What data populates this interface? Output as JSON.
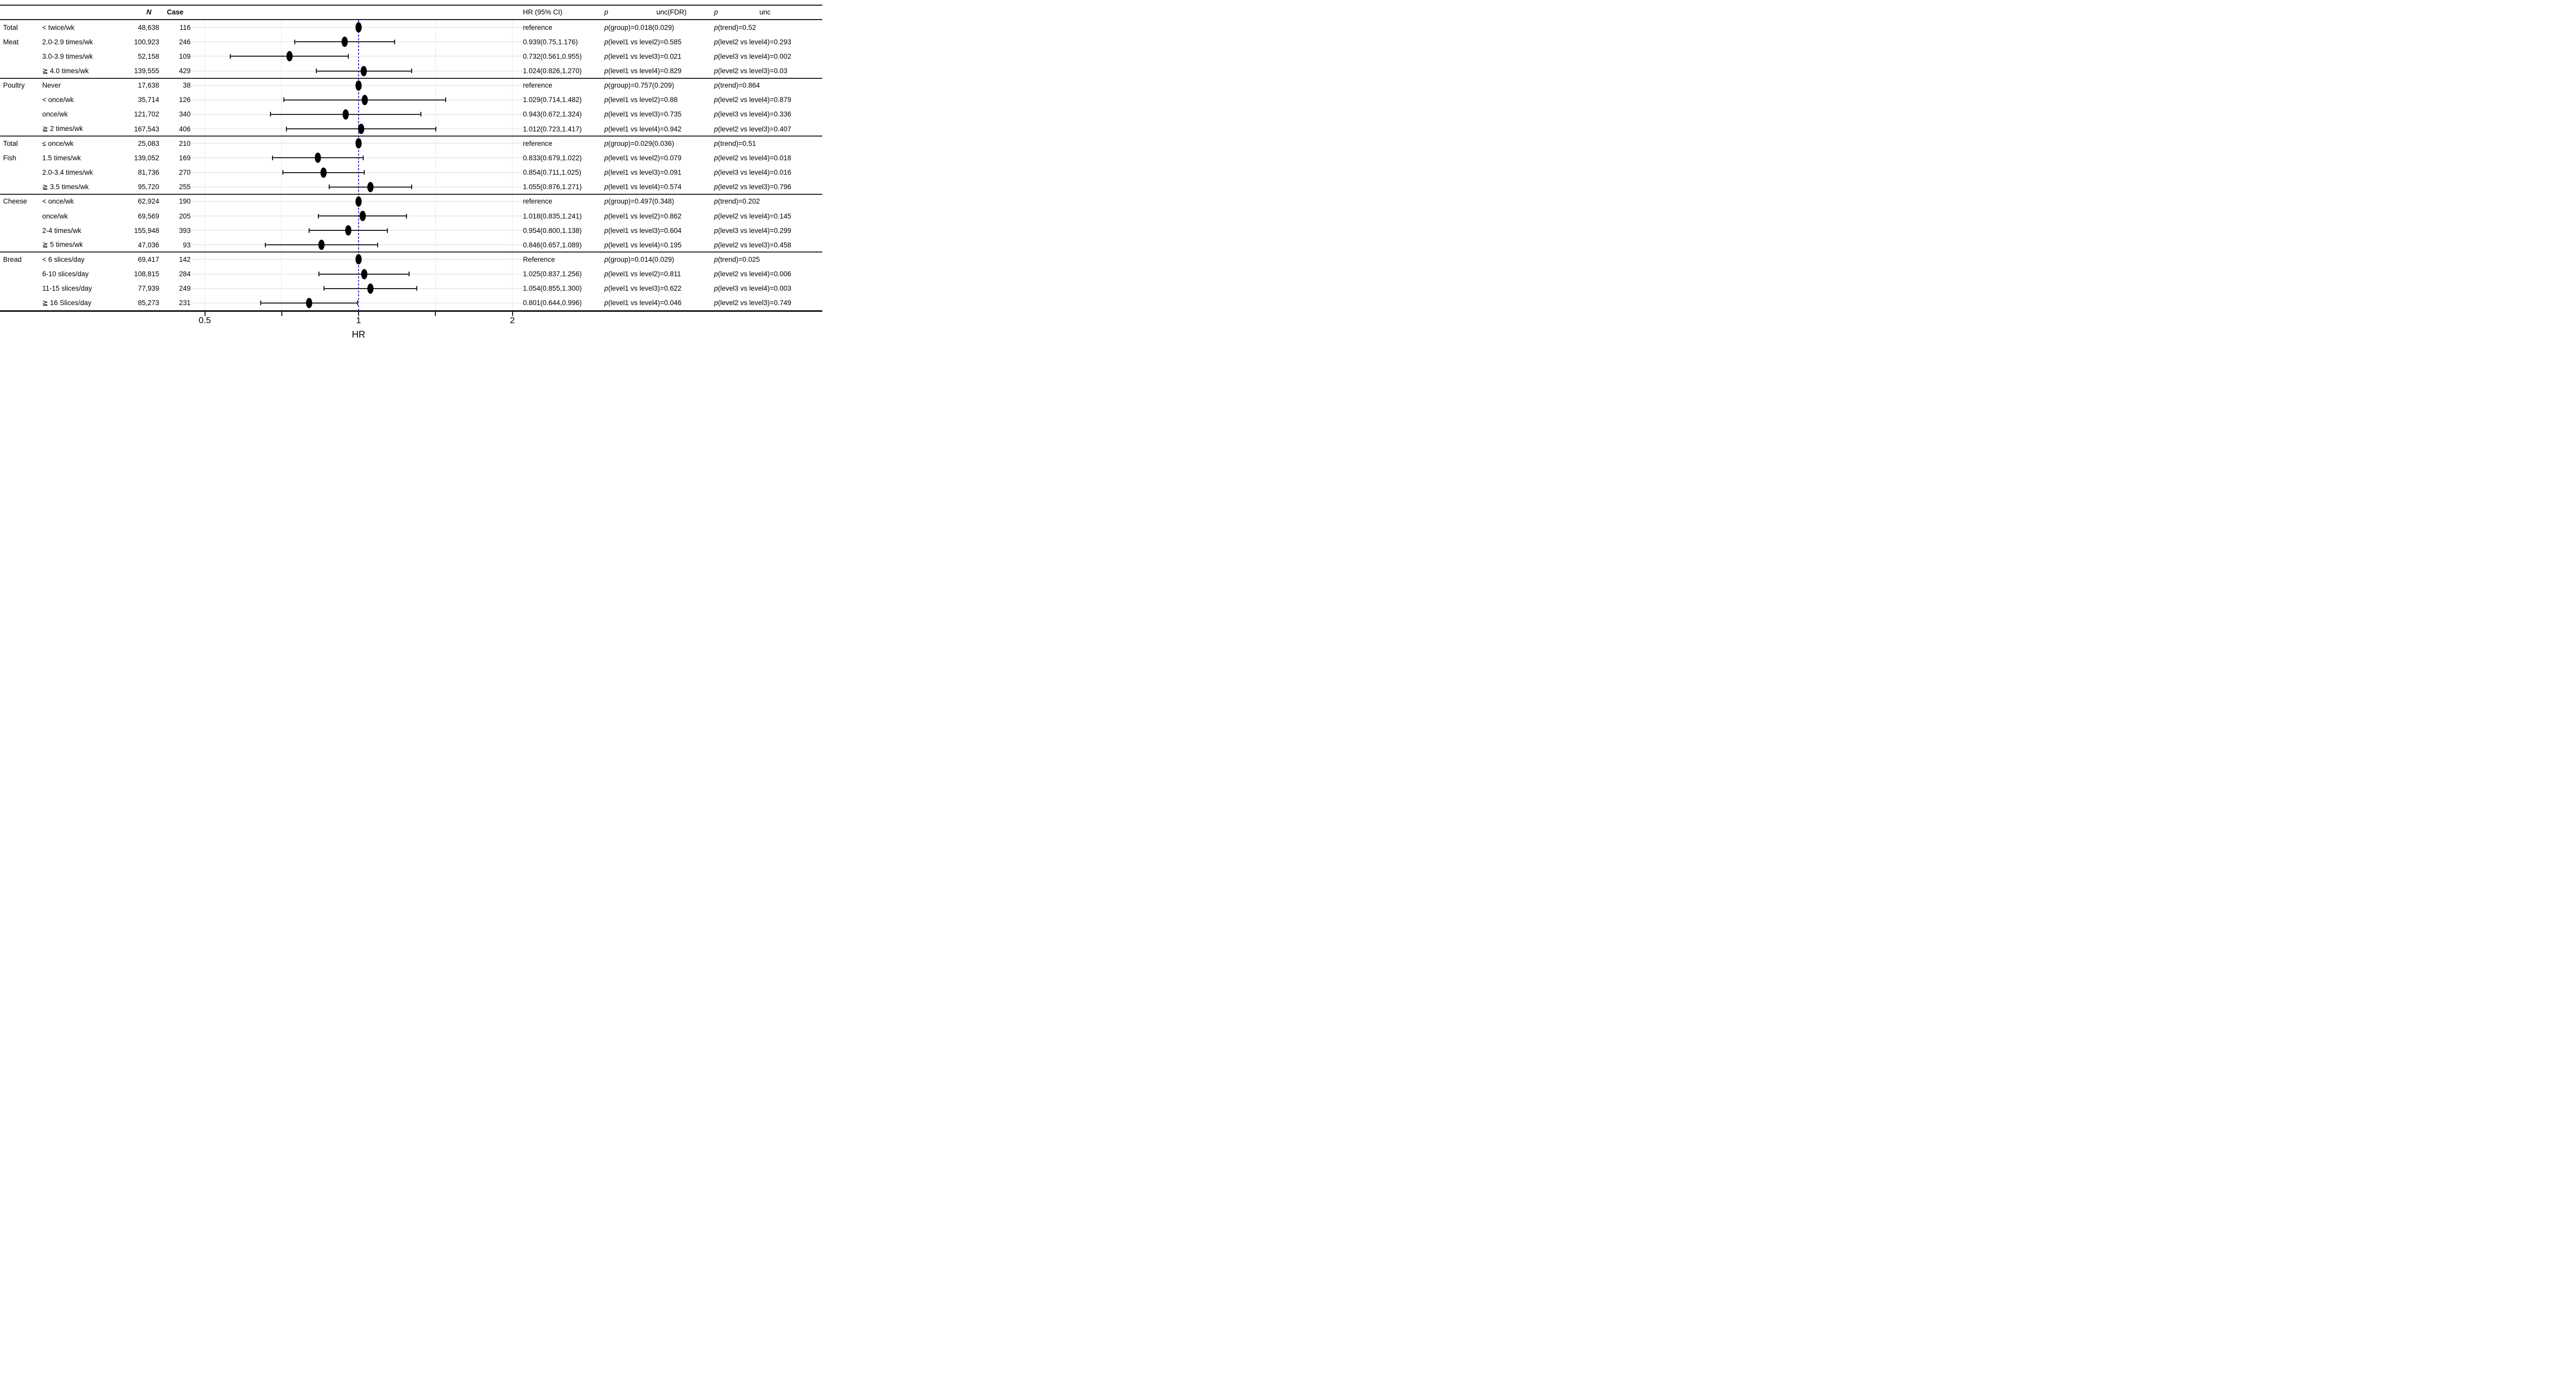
{
  "chart_data": {
    "type": "forest",
    "title": "",
    "xlabel": "HR",
    "x_scale": "log",
    "x_axis_ticks": [
      {
        "value": 0.5,
        "label": "0.5"
      },
      {
        "value": 0.7071,
        "label": ""
      },
      {
        "value": 1,
        "label": "1"
      },
      {
        "value": 1.4142,
        "label": ""
      },
      {
        "value": 2,
        "label": "2"
      }
    ],
    "x_range_displayed": [
      0.47,
      2.1
    ],
    "reference_line": {
      "value": 1,
      "style": "dashed",
      "color": "#3b3bd0"
    },
    "marker_color": "#000000",
    "grid": true,
    "headers": {
      "n": "N",
      "case": "Case",
      "hr_ci": "HR (95% CI)",
      "p1": "p",
      "unc_fdr": "unc(FDR)",
      "p2": "p",
      "unc": "unc"
    },
    "groups": [
      {
        "label_lines": [
          "Total",
          "Meat"
        ],
        "rows": [
          {
            "level": "< twice/wk",
            "n": "48,638",
            "case": "116",
            "reference": true,
            "hr": 1,
            "ci": null,
            "hr_ci": "reference",
            "p_col1": "p(group)=0.018(0.029)",
            "p_col2": "p(trend)=0.52"
          },
          {
            "level": "2.0-2.9 times/wk",
            "n": "100,923",
            "case": "246",
            "reference": false,
            "hr": 0.939,
            "ci": [
              0.75,
              1.176
            ],
            "hr_ci": "0.939(0.75,1.176)",
            "p_col1": "p(level1 vs level2)=0.585",
            "p_col2": "p(level2 vs level4)=0.293"
          },
          {
            "level": "3.0-3.9 times/wk",
            "n": "52,158",
            "case": "109",
            "reference": false,
            "hr": 0.732,
            "ci": [
              0.561,
              0.955
            ],
            "hr_ci": "0.732(0.561,0.955)",
            "p_col1": "p(level1 vs level3)=0.021",
            "p_col2": "p(level3 vs level4)=0.002"
          },
          {
            "level": "≧ 4.0 times/wk",
            "n": "139,555",
            "case": "429",
            "reference": false,
            "hr": 1.024,
            "ci": [
              0.826,
              1.27
            ],
            "hr_ci": "1.024(0.826,1.270)",
            "p_col1": "p(level1 vs level4)=0.829",
            "p_col2": "p(level2 vs level3)=0.03"
          }
        ]
      },
      {
        "label_lines": [
          "Poultry"
        ],
        "rows": [
          {
            "level": "Never",
            "n": "17,638",
            "case": "38",
            "reference": true,
            "hr": 1,
            "ci": null,
            "hr_ci": "reference",
            "p_col1": "p(group)=0.757(0.209)",
            "p_col2": "p(trend)=0.864"
          },
          {
            "level": "< once/wk",
            "n": "35,714",
            "case": "126",
            "reference": false,
            "hr": 1.029,
            "ci": [
              0.714,
              1.482
            ],
            "hr_ci": "1.029(0.714,1.482)",
            "p_col1": "p(level1 vs level2)=0.88",
            "p_col2": "p(level2 vs level4)=0.879"
          },
          {
            "level": "once/wk",
            "n": "121,702",
            "case": "340",
            "reference": false,
            "hr": 0.943,
            "ci": [
              0.672,
              1.324
            ],
            "hr_ci": "0.943(0.672,1.324)",
            "p_col1": "p(level1 vs level3)=0.735",
            "p_col2": "p(level3 vs level4)=0.336"
          },
          {
            "level": "≧ 2 times/wk",
            "n": "167,543",
            "case": "406",
            "reference": false,
            "hr": 1.012,
            "ci": [
              0.723,
              1.417
            ],
            "hr_ci": "1.012(0.723,1.417)",
            "p_col1": "p(level1 vs level4)=0.942",
            "p_col2": "p(level2 vs level3)=0.407"
          }
        ]
      },
      {
        "label_lines": [
          "Total",
          "Fish"
        ],
        "rows": [
          {
            "level": "≤ once/wk",
            "n": "25,083",
            "case": "210",
            "reference": true,
            "hr": 1,
            "ci": null,
            "hr_ci": "reference",
            "p_col1": "p(group)=0.029(0.036)",
            "p_col2": "p(trend)=0.51"
          },
          {
            "level": "1.5 times/wk",
            "n": "139,052",
            "case": "169",
            "reference": false,
            "hr": 0.833,
            "ci": [
              0.679,
              1.022
            ],
            "hr_ci": "0.833(0.679,1.022)",
            "p_col1": "p(level1 vs level2)=0.079",
            "p_col2": "p(level2 vs level4)=0.018"
          },
          {
            "level": "2.0-3.4 times/wk",
            "n": "81,736",
            "case": "270",
            "reference": false,
            "hr": 0.854,
            "ci": [
              0.711,
              1.025
            ],
            "hr_ci": "0.854(0.711,1.025)",
            "p_col1": "p(level1 vs level3)=0.091",
            "p_col2": "p(level3 vs level4)=0.016"
          },
          {
            "level": "≧ 3.5 times/wk",
            "n": "95,720",
            "case": "255",
            "reference": false,
            "hr": 1.055,
            "ci": [
              0.876,
              1.271
            ],
            "hr_ci": "1.055(0.876,1.271)",
            "p_col1": "p(level1 vs level4)=0.574",
            "p_col2": "p(level2 vs level3)=0.796"
          }
        ]
      },
      {
        "label_lines": [
          "Cheese"
        ],
        "rows": [
          {
            "level": "< once/wk",
            "n": "62,924",
            "case": "190",
            "reference": true,
            "hr": 1,
            "ci": null,
            "hr_ci": "reference",
            "p_col1": "p(group)=0.497(0.348)",
            "p_col2": "p(trend)=0.202"
          },
          {
            "level": "once/wk",
            "n": "69,569",
            "case": "205",
            "reference": false,
            "hr": 1.018,
            "ci": [
              0.835,
              1.241
            ],
            "hr_ci": "1.018(0.835,1.241)",
            "p_col1": "p(level1 vs level2)=0.862",
            "p_col2": "p(level2 vs level4)=0.145"
          },
          {
            "level": "2-4 times/wk",
            "n": "155,948",
            "case": "393",
            "reference": false,
            "hr": 0.954,
            "ci": [
              0.8,
              1.138
            ],
            "hr_ci": "0.954(0.800,1.138)",
            "p_col1": "p(level1 vs level3)=0.604",
            "p_col2": "p(level3 vs level4)=0.299"
          },
          {
            "level": "≧ 5 times/wk",
            "n": "47,036",
            "case": "93",
            "reference": false,
            "hr": 0.846,
            "ci": [
              0.657,
              1.089
            ],
            "hr_ci": "0.846(0.657,1.089)",
            "p_col1": "p(level1 vs level4)=0.195",
            "p_col2": "p(level2 vs level3)=0.458"
          }
        ]
      },
      {
        "label_lines": [
          "Bread"
        ],
        "rows": [
          {
            "level": "< 6 slices/day",
            "n": "69,417",
            "case": "142",
            "reference": true,
            "hr": 1,
            "ci": null,
            "hr_ci": "Reference",
            "p_col1": "p(group)=0.014(0.029)",
            "p_col2": "p(trend)=0.025"
          },
          {
            "level": "6-10 slices/day",
            "n": "108,815",
            "case": "284",
            "reference": false,
            "hr": 1.025,
            "ci": [
              0.837,
              1.256
            ],
            "hr_ci": "1.025(0.837,1.256)",
            "p_col1": "p(level1 vs level2)=0.811",
            "p_col2": "p(level2 vs level4)=0.006"
          },
          {
            "level": "11-15 slices/day",
            "n": "77,939",
            "case": "249",
            "reference": false,
            "hr": 1.054,
            "ci": [
              0.855,
              1.3
            ],
            "hr_ci": "1.054(0.855,1.300)",
            "p_col1": "p(level1 vs level3)=0.622",
            "p_col2": "p(level3 vs level4)=0.003"
          },
          {
            "level": "≧ 16 Slices/day",
            "n": "85,273",
            "case": "231",
            "reference": false,
            "hr": 0.801,
            "ci": [
              0.644,
              0.996
            ],
            "hr_ci": "0.801(0.644,0.996)",
            "p_col1": "p(level1 vs level4)=0.046",
            "p_col2": "p(level2 vs level3)=0.749"
          }
        ]
      }
    ]
  }
}
